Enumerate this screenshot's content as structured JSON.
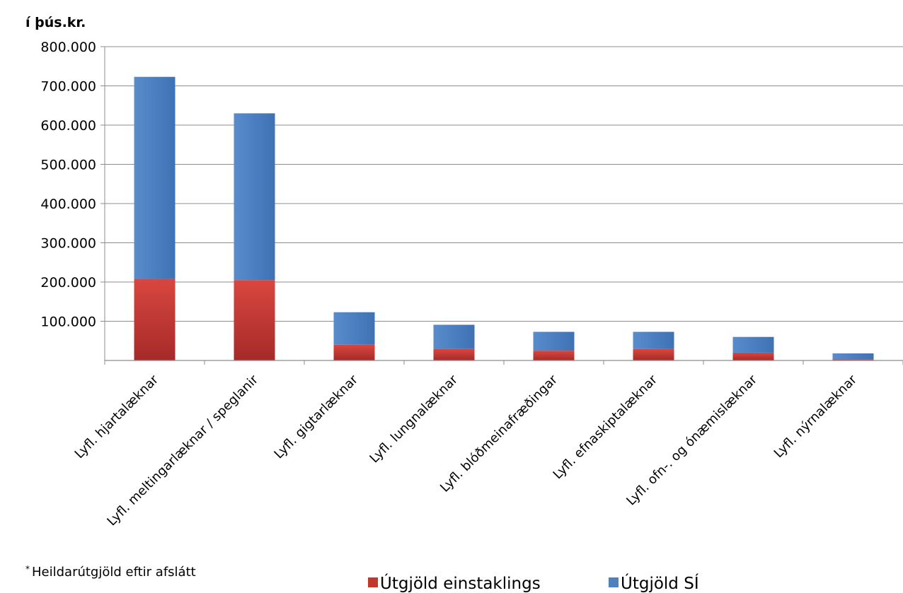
{
  "chart_data": {
    "type": "bar",
    "stacked": true,
    "unit_label": "í þús.kr.",
    "categories": [
      "Lyfl. hjartalæknar",
      "Lyfl. meltingarlæknar / speglanir",
      "Lyfl. gigtarlæknar",
      "Lyfl. lungnalæknar",
      "Lyfl. blóðmeinafræðingar",
      "Lyfl. efnaskiptalæknar",
      "Lyfl. ofn-. og ónæmislæknar",
      "Lyfl. nýrnalæknar"
    ],
    "series": [
      {
        "name": "Útgjöld einstaklings",
        "color": "#c0392b",
        "values": [
          208000,
          205000,
          40000,
          30000,
          25000,
          29000,
          20000,
          3000
        ]
      },
      {
        "name": "Útgjöld SÍ",
        "color": "#4f81bd",
        "values": [
          515000,
          425000,
          83000,
          61000,
          48000,
          44000,
          40000,
          15000
        ]
      }
    ],
    "ylim": [
      0,
      800000
    ],
    "y_ticks": [
      "100.000",
      "200.000",
      "300.000",
      "400.000",
      "500.000",
      "600.000",
      "700.000",
      "800.000"
    ],
    "y_tick_values": [
      100000,
      200000,
      300000,
      400000,
      500000,
      600000,
      700000,
      800000
    ],
    "grid": true,
    "legend_placement": "bottom"
  },
  "footnote": {
    "mark": "*",
    "text": "Heildarútgjöld eftir afslátt"
  }
}
